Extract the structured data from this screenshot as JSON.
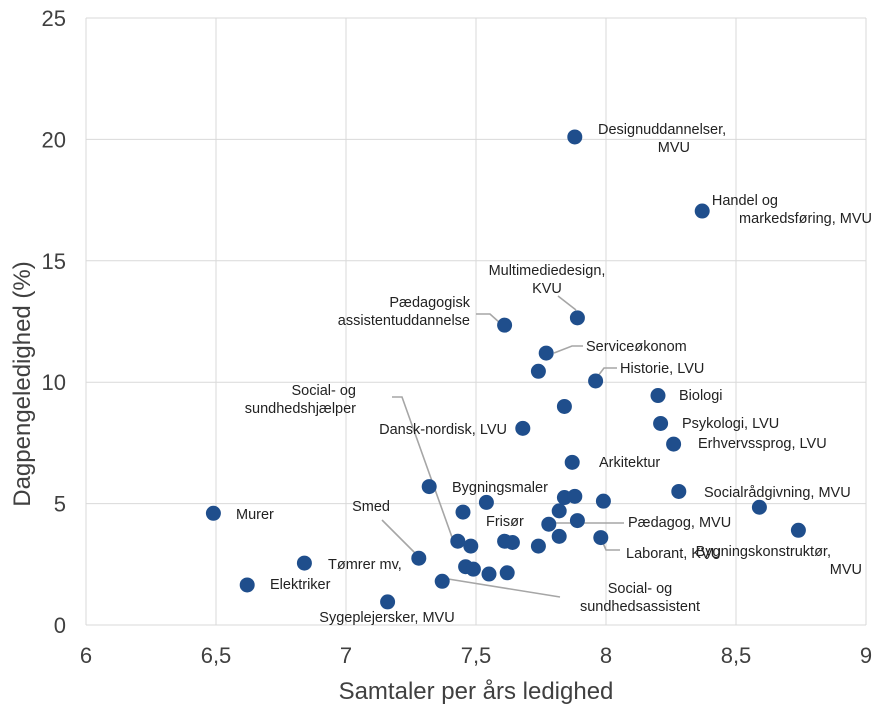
{
  "chart_data": {
    "type": "scatter",
    "xlabel": "Samtaler per års ledighed",
    "ylabel": "Dagpengeledighed (%)",
    "xlim": [
      6,
      9
    ],
    "ylim": [
      0,
      25
    ],
    "xticks": [
      "6",
      "6,5",
      "7",
      "7,5",
      "8",
      "8,5",
      "9"
    ],
    "yticks": [
      "0",
      "5",
      "10",
      "15",
      "20",
      "25"
    ],
    "grid": true,
    "marker_color": "#1f4e8c",
    "points": [
      {
        "x": 7.88,
        "y": 20.1,
        "label": [
          "Designuddannelser,",
          "MVU"
        ]
      },
      {
        "x": 8.37,
        "y": 17.05,
        "label": [
          "Handel og",
          "markedsføring, MVU"
        ]
      },
      {
        "x": 7.89,
        "y": 12.65,
        "label": [
          "Multimediedesign,",
          "KVU"
        ]
      },
      {
        "x": 7.61,
        "y": 12.35,
        "label": [
          "Pædagogisk",
          "assistentuddannelse"
        ]
      },
      {
        "x": 7.77,
        "y": 11.2,
        "label": [
          "Serviceøkonom"
        ]
      },
      {
        "x": 7.74,
        "y": 10.45
      },
      {
        "x": 7.96,
        "y": 10.05,
        "label": [
          "Historie, LVU"
        ]
      },
      {
        "x": 8.2,
        "y": 9.45,
        "label": [
          "Biologi"
        ]
      },
      {
        "x": 7.84,
        "y": 9.0
      },
      {
        "x": 8.21,
        "y": 8.3,
        "label": [
          "Psykologi, LVU"
        ]
      },
      {
        "x": 7.68,
        "y": 8.1,
        "label": [
          "Dansk-nordisk, LVU"
        ]
      },
      {
        "x": 8.26,
        "y": 7.45,
        "label": [
          "Erhvervssprog, LVU"
        ]
      },
      {
        "x": 7.87,
        "y": 6.7,
        "label": [
          "Arkitektur"
        ]
      },
      {
        "x": 7.32,
        "y": 5.7,
        "label": [
          "Bygningsmaler"
        ]
      },
      {
        "x": 8.28,
        "y": 5.5,
        "label": [
          "Socialrådgivning, MVU"
        ]
      },
      {
        "x": 7.84,
        "y": 5.25
      },
      {
        "x": 7.88,
        "y": 5.3
      },
      {
        "x": 7.54,
        "y": 5.05
      },
      {
        "x": 7.99,
        "y": 5.1
      },
      {
        "x": 8.59,
        "y": 4.85
      },
      {
        "x": 6.49,
        "y": 4.6,
        "label": [
          "Murer"
        ]
      },
      {
        "x": 7.45,
        "y": 4.65,
        "label": [
          "Frisør"
        ]
      },
      {
        "x": 7.82,
        "y": 4.7
      },
      {
        "x": 7.89,
        "y": 4.3
      },
      {
        "x": 7.78,
        "y": 4.15,
        "label": [
          "Pædagog, MVU"
        ]
      },
      {
        "x": 8.74,
        "y": 3.9,
        "label": [
          "Bygningskonstruktør,",
          "MVU"
        ]
      },
      {
        "x": 7.82,
        "y": 3.65
      },
      {
        "x": 7.98,
        "y": 3.6,
        "label": [
          "Laborant, KVU"
        ]
      },
      {
        "x": 7.43,
        "y": 3.45,
        "label": [
          "Social- og",
          "sundhedshjælper"
        ]
      },
      {
        "x": 7.61,
        "y": 3.45
      },
      {
        "x": 7.64,
        "y": 3.4
      },
      {
        "x": 7.48,
        "y": 3.25
      },
      {
        "x": 7.74,
        "y": 3.25
      },
      {
        "x": 7.28,
        "y": 2.75,
        "label": [
          "Smed"
        ]
      },
      {
        "x": 6.84,
        "y": 2.55,
        "label": [
          "Tømrer mv,"
        ]
      },
      {
        "x": 7.46,
        "y": 2.4
      },
      {
        "x": 7.49,
        "y": 2.3
      },
      {
        "x": 7.55,
        "y": 2.1
      },
      {
        "x": 7.62,
        "y": 2.15
      },
      {
        "x": 7.37,
        "y": 1.8,
        "label": [
          "Social- og",
          "sundhedsassistent"
        ]
      },
      {
        "x": 6.62,
        "y": 1.65,
        "label": [
          "Elektriker"
        ]
      },
      {
        "x": 7.16,
        "y": 0.95,
        "label": [
          "Sygeplejersker, MVU"
        ]
      }
    ]
  }
}
